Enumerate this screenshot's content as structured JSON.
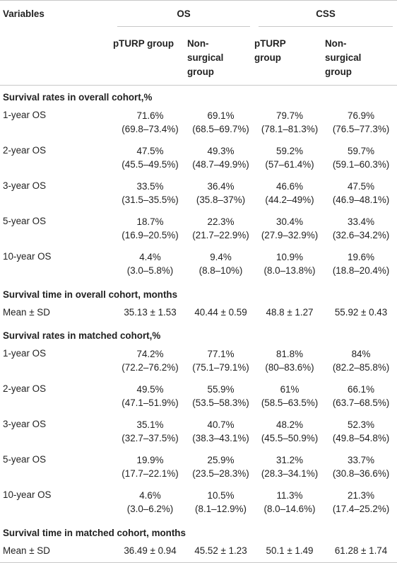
{
  "header": {
    "variables": "Variables",
    "os": "OS",
    "css": "CSS",
    "subcols": [
      "pTURP group",
      "Non-surgical group",
      "pTURP group",
      "Non-surgical group"
    ],
    "subcols_lines": [
      [
        "pTURP group"
      ],
      [
        "Non-",
        "surgical",
        "group"
      ],
      [
        "pTURP",
        "group"
      ],
      [
        "Non-",
        "surgical",
        "group"
      ]
    ]
  },
  "sections": [
    {
      "title": "Survival rates in overall cohort,%",
      "rows": [
        {
          "label": "1-year OS",
          "cells": [
            [
              "71.6%",
              "(69.8–73.4%)"
            ],
            [
              "69.1%",
              "(68.5–69.7%)"
            ],
            [
              "79.7%",
              "(78.1–81.3%)"
            ],
            [
              "76.9%",
              "(76.5–77.3%)"
            ]
          ]
        },
        {
          "label": "2-year OS",
          "cells": [
            [
              "47.5%",
              "(45.5–49.5%)"
            ],
            [
              "49.3%",
              "(48.7–49.9%)"
            ],
            [
              "59.2%",
              "(57–61.4%)"
            ],
            [
              "59.7%",
              "(59.1–60.3%)"
            ]
          ]
        },
        {
          "label": "3-year OS",
          "cells": [
            [
              "33.5%",
              "(31.5–35.5%)"
            ],
            [
              "36.4%",
              "(35.8–37%)"
            ],
            [
              "46.6%",
              "(44.2–49%)"
            ],
            [
              "47.5%",
              "(46.9–48.1%)"
            ]
          ]
        },
        {
          "label": "5-year OS",
          "cells": [
            [
              "18.7%",
              "(16.9–20.5%)"
            ],
            [
              "22.3%",
              "(21.7–22.9%)"
            ],
            [
              "30.4%",
              "(27.9–32.9%)"
            ],
            [
              "33.4%",
              "(32.6–34.2%)"
            ]
          ]
        },
        {
          "label": "10-year OS",
          "cells": [
            [
              "4.4%",
              "(3.0–5.8%)"
            ],
            [
              "9.4%",
              "(8.8–10%)"
            ],
            [
              "10.9%",
              "(8.0–13.8%)"
            ],
            [
              "19.6%",
              "(18.8–20.4%)"
            ]
          ]
        }
      ]
    },
    {
      "title": "Survival time in overall cohort, months",
      "mean": {
        "label": "Mean ± SD",
        "cells": [
          "35.13 ± 1.53",
          "40.44 ± 0.59",
          "48.8 ± 1.27",
          "55.92 ± 0.43"
        ]
      }
    },
    {
      "title": "Survival rates in matched cohort,%",
      "rows": [
        {
          "label": "1-year OS",
          "cells": [
            [
              "74.2%",
              "(72.2–76.2%)"
            ],
            [
              "77.1%",
              "(75.1–79.1%)"
            ],
            [
              "81.8%",
              "(80–83.6%)"
            ],
            [
              "84%",
              "(82.2–85.8%)"
            ]
          ]
        },
        {
          "label": "2-year OS",
          "cells": [
            [
              "49.5%",
              "(47.1–51.9%)"
            ],
            [
              "55.9%",
              "(53.5–58.3%)"
            ],
            [
              "61%",
              "(58.5–63.5%)"
            ],
            [
              "66.1%",
              "(63.7–68.5%)"
            ]
          ]
        },
        {
          "label": "3-year OS",
          "cells": [
            [
              "35.1%",
              "(32.7–37.5%)"
            ],
            [
              "40.7%",
              "(38.3–43.1%)"
            ],
            [
              "48.2%",
              "(45.5–50.9%)"
            ],
            [
              "52.3%",
              "(49.8–54.8%)"
            ]
          ]
        },
        {
          "label": "5-year OS",
          "cells": [
            [
              "19.9%",
              "(17.7–22.1%)"
            ],
            [
              "25.9%",
              "(23.5–28.3%)"
            ],
            [
              "31.2%",
              "(28.3–34.1%)"
            ],
            [
              "33.7%",
              "(30.8–36.6%)"
            ]
          ]
        },
        {
          "label": "10-year OS",
          "cells": [
            [
              "4.6%",
              "(3.0–6.2%)"
            ],
            [
              "10.5%",
              "(8.1–12.9%)"
            ],
            [
              "11.3%",
              "(8.0–14.6%)"
            ],
            [
              "21.3%",
              "(17.4–25.2%)"
            ]
          ]
        }
      ]
    },
    {
      "title": "Survival time in matched cohort, months",
      "mean": {
        "label": "Mean ± SD",
        "cells": [
          "36.49 ± 0.94",
          "45.52 ± 1.23",
          "50.1 ± 1.49",
          "61.28 ± 1.74"
        ]
      }
    }
  ]
}
